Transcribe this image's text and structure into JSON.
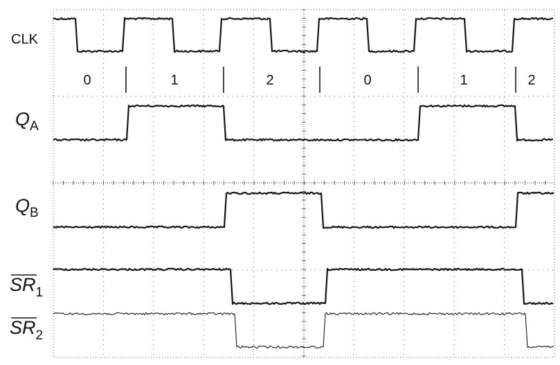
{
  "signals": [
    {
      "id": "clk",
      "name": "CLK",
      "sub": "",
      "overline": false
    },
    {
      "id": "qa",
      "name": "Q",
      "sub": "A",
      "overline": false
    },
    {
      "id": "qb",
      "name": "Q",
      "sub": "B",
      "overline": false
    },
    {
      "id": "sr1",
      "name": "SR",
      "sub": "1",
      "overline": true
    },
    {
      "id": "sr2",
      "name": "SR",
      "sub": "2",
      "overline": true
    }
  ],
  "count_sequence": [
    "0",
    "1",
    "2",
    "0",
    "1",
    "2"
  ],
  "colors": {
    "trace": "#151515",
    "grid": "#555555",
    "label": "#111111"
  }
}
